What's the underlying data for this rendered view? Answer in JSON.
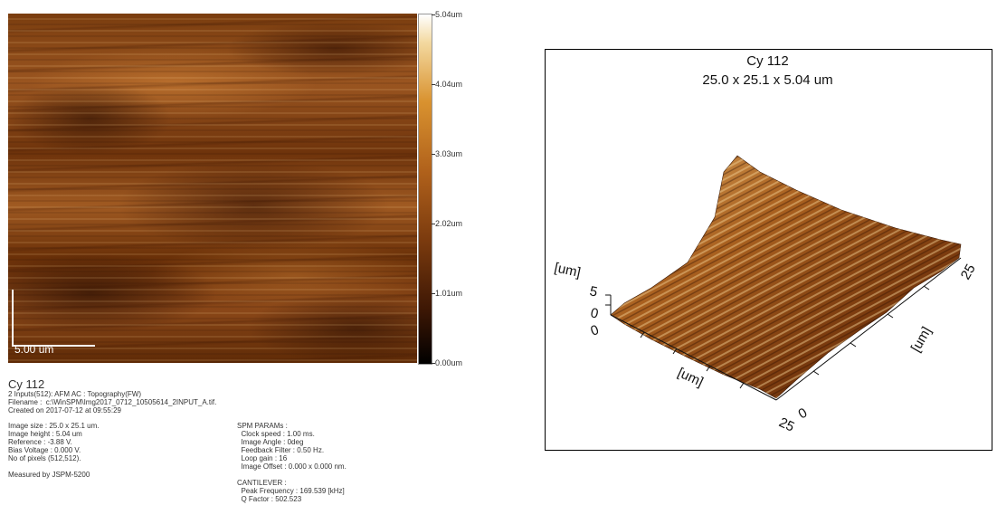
{
  "topography": {
    "scalebar_label": "5.00 um"
  },
  "colorbar": {
    "labels": [
      "5.04um",
      "4.04um",
      "3.03um",
      "2.02um",
      "1.01um",
      "0.00um"
    ],
    "colors": {
      "high": "#ffffff",
      "mid": "#b0611b",
      "low": "#000000"
    }
  },
  "info": {
    "title": "Cy 112",
    "line1": "2 Inputs(512): AFM AC : Topography(FW)",
    "line2": "Filename :  c:\\WinSPM\\Img2017_0712_10505614_2INPUT_A.tif.",
    "line3": "Created on 2017-07-12 at 09:55:29",
    "image_size": "Image size : 25.0 x 25.1 um.",
    "image_height": "Image height : 5.04 um",
    "reference": "Reference : -3.88 V.",
    "bias": "Bias Voltage : 0.000 V.",
    "pixels": "No of pixels (512,512).",
    "measured": "Measured by JSPM-5200"
  },
  "spm": {
    "header": "SPM PARAMs :",
    "clock": "  Clock speed : 1.00 ms.",
    "angle": "  Image Angle : 0deg",
    "feedback": "  Feedback Filter : 0.50 Hz.",
    "loop": "  Loop gain : 16",
    "offset": "  Image Offset : 0.000 x 0.000 nm."
  },
  "cantilever": {
    "header": "CANTILEVER :",
    "peak": "  Peak Frequency : 169.539 [kHz]",
    "q": "  Q Factor : 502.523"
  },
  "panel3d": {
    "title": "Cy 112",
    "subtitle": "25.0 x 25.1 x 5.04 um",
    "z_unit": "[um]",
    "z_tick_5": "5",
    "z_tick_0": "0",
    "origin_0": "0",
    "x_unit": "[um]",
    "x_end": "25",
    "origin_right_0": "0",
    "y_unit": "[um]",
    "y_end": "25"
  }
}
